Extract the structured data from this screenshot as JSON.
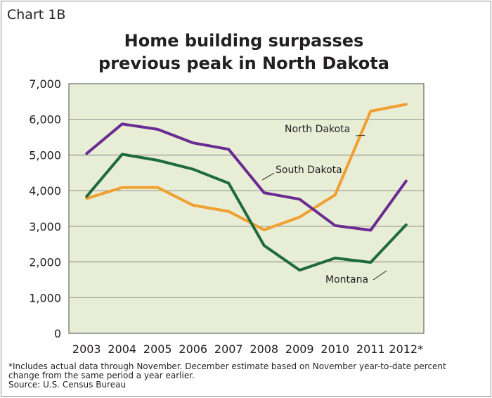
{
  "header": {
    "chart_label": "Chart 1B",
    "title_line1": "Home building surpasses",
    "title_line2": "previous peak in North Dakota"
  },
  "footnotes": {
    "note": "*Includes actual data through November. December estimate based on November year-to-date percent change from the same period a year earlier.",
    "source": "Source: U.S. Census Bureau"
  },
  "colors": {
    "plot_background": "#e8edd6",
    "grid": "#6f6f6f",
    "north_dakota": "#f0a030",
    "south_dakota": "#6a2b92",
    "montana": "#1e6b3c"
  },
  "chart_data": {
    "type": "line",
    "title": "Home building surpasses previous peak in North Dakota",
    "xlabel": "",
    "ylabel": "",
    "categories": [
      "2003",
      "2004",
      "2005",
      "2006",
      "2007",
      "2008",
      "2009",
      "2010",
      "2011",
      "2012*"
    ],
    "ylim": [
      0,
      7000
    ],
    "yticks": [
      "0",
      "1,000",
      "2,000",
      "3,000",
      "4,000",
      "5,000",
      "6,000",
      "7,000"
    ],
    "grid": true,
    "series": [
      {
        "name": "North Dakota",
        "color": "#f0a030",
        "values": [
          3780,
          4090,
          4090,
          3590,
          3420,
          2900,
          3260,
          3880,
          6230,
          6420
        ]
      },
      {
        "name": "South Dakota",
        "color": "#6a2b92",
        "values": [
          5040,
          5870,
          5720,
          5340,
          5160,
          3940,
          3760,
          3020,
          2890,
          4270
        ]
      },
      {
        "name": "Montana",
        "color": "#1e6b3c",
        "values": [
          3840,
          5020,
          4850,
          4600,
          4210,
          2460,
          1770,
          2110,
          1990,
          3040
        ]
      }
    ]
  }
}
